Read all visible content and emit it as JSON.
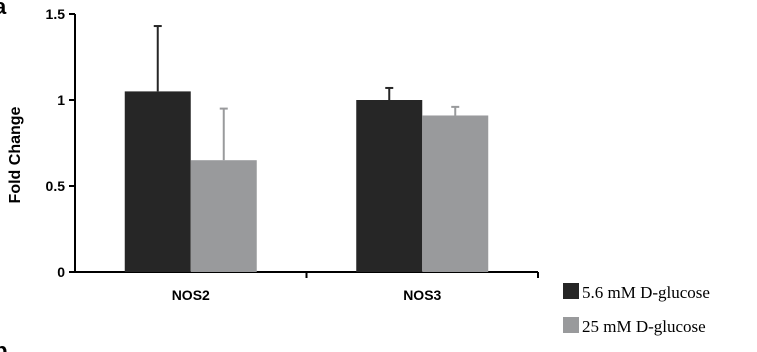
{
  "panels": {
    "top": "a",
    "bottom": "b"
  },
  "colors": {
    "series1": "#262626",
    "series2": "#999a9c",
    "axis": "#000000"
  },
  "chart_data": {
    "type": "bar",
    "categories": [
      "NOS2",
      "NOS3"
    ],
    "ylabel": "Fold Change",
    "ylim": [
      0,
      1.5
    ],
    "yticks": [
      "0",
      "0.5",
      "1",
      "1.5"
    ],
    "legend_position": "bottom-right",
    "series": [
      {
        "name": "5.6 mM D-glucose",
        "values": [
          1.05,
          1.0
        ],
        "errors": [
          0.38,
          0.07
        ]
      },
      {
        "name": "25 mM D-glucose",
        "values": [
          0.65,
          0.91
        ],
        "errors": [
          0.3,
          0.05
        ]
      }
    ]
  }
}
